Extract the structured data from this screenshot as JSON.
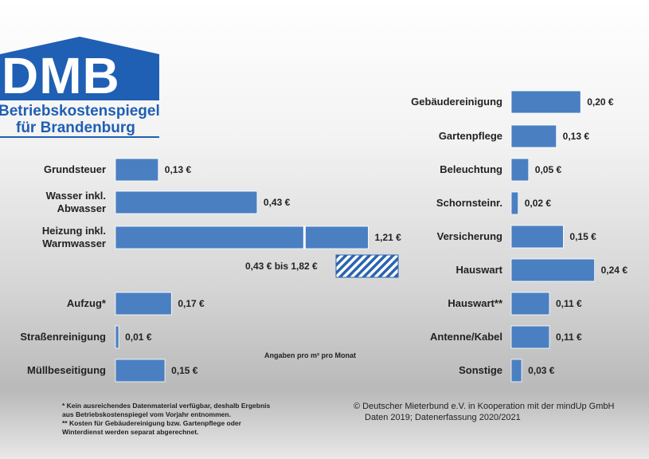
{
  "logo": {
    "abbr": "DMB",
    "title": "Betriebskostenspiegel",
    "subtitle": "für Brandenburg"
  },
  "chart_data": [
    {
      "type": "bar",
      "orientation": "horizontal",
      "categories": [
        "Grundsteuer",
        "Wasser inkl.\nAbwasser",
        "Heizung inkl.\nWarmwasser",
        "Aufzug*",
        "Straßenreinigung",
        "Müllbeseitigung"
      ],
      "values": [
        0.13,
        0.43,
        1.21,
        0.17,
        0.01,
        0.15
      ],
      "value_labels": [
        "0,13 €",
        "0,43 €",
        "1,21 €",
        "0,17 €",
        "0,01 €",
        "0,15 €"
      ],
      "color": "#4a80c2",
      "xlim": [
        0,
        1.25
      ],
      "xbreak": [
        0.57,
        1.02
      ],
      "annotation": "0,43 € bis 1,82 €"
    },
    {
      "type": "bar",
      "orientation": "horizontal",
      "categories": [
        "Gebäudereinigung",
        "Gartenpflege",
        "Beleuchtung",
        "Schornsteinr.",
        "Versicherung",
        "Hauswart",
        "Hauswart**",
        "Antenne/Kabel",
        "Sonstige"
      ],
      "values": [
        0.2,
        0.13,
        0.05,
        0.02,
        0.15,
        0.24,
        0.11,
        0.11,
        0.03
      ],
      "value_labels": [
        "0,20 €",
        "0,13 €",
        "0,05 €",
        "0,02 €",
        "0,15 €",
        "0,24 €",
        "0,11 €",
        "0,11 €",
        "0,03 €"
      ],
      "color": "#4a80c2",
      "xlim": [
        0,
        0.25
      ]
    }
  ],
  "note": "Angaben pro m² pro Monat",
  "footnotes": [
    "*  Kein ausreichendes Datenmaterial verfügbar, deshalb Ergebnis\n   aus Betriebskostenspiegel vom Vorjahr entnommen.",
    "** Kosten für Gebäudereinigung bzw. Gartenpflege oder\n   Winterdienst werden separat abgerechnet."
  ],
  "credit": [
    "©  Deutscher Mieterbund e.V. in Kooperation mit der mindUp GmbH",
    "Daten 2019; Datenerfassung 2020/2021"
  ]
}
